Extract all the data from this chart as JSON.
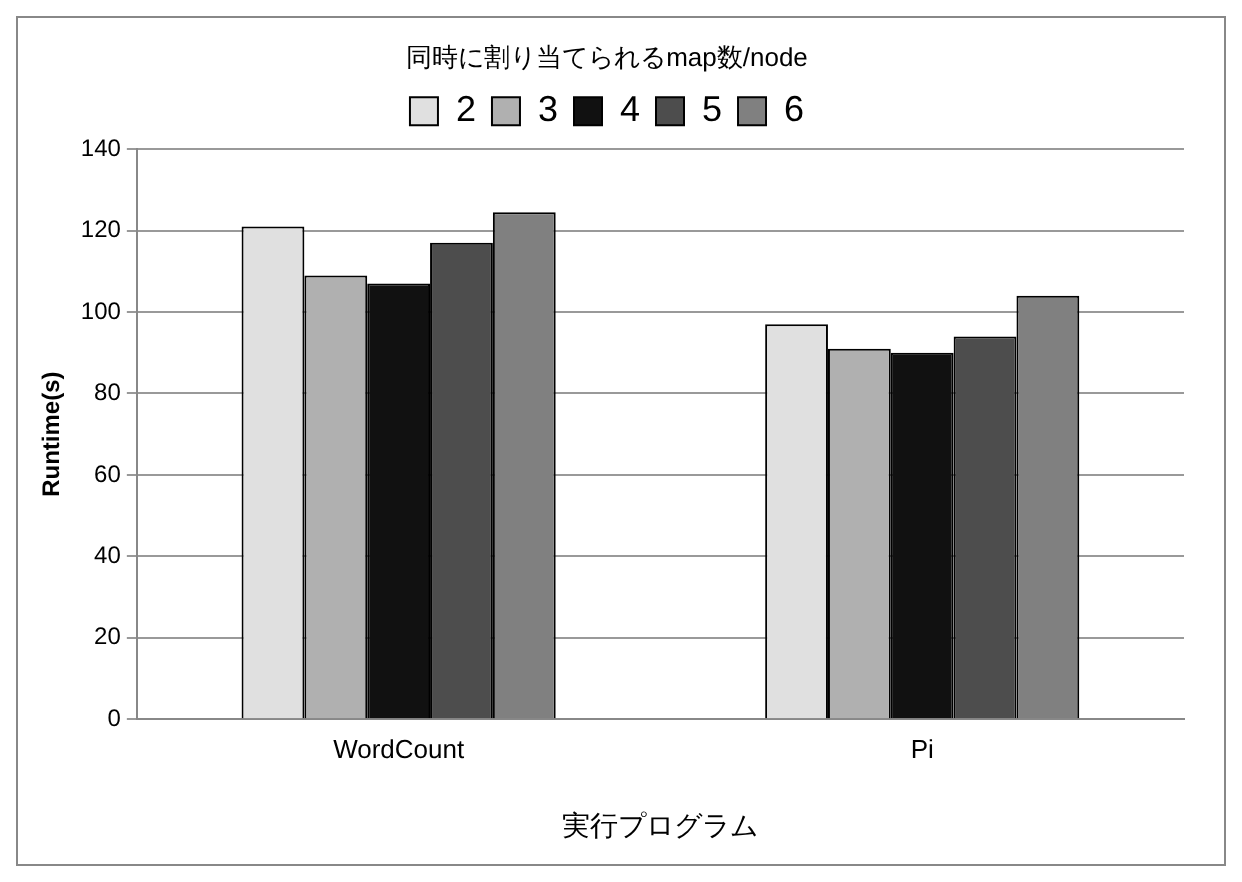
{
  "chart_data": {
    "type": "bar",
    "legend_title": "同時に割り当てられるmap数/node",
    "xlabel": "実行プログラム",
    "ylabel": "Runtime(s)",
    "categories": [
      "WordCount",
      "Pi"
    ],
    "series": [
      {
        "name": "2",
        "color": "#e0e0e0",
        "values": [
          121,
          97
        ]
      },
      {
        "name": "3",
        "color": "#b0b0b0",
        "values": [
          109,
          91
        ]
      },
      {
        "name": "4",
        "color": "#111111",
        "values": [
          107,
          90
        ]
      },
      {
        "name": "5",
        "color": "#4d4d4d",
        "values": [
          117,
          94
        ]
      },
      {
        "name": "6",
        "color": "#808080",
        "values": [
          124.5,
          104
        ]
      }
    ],
    "ylim": [
      0,
      140
    ],
    "yticks": [
      0,
      20,
      40,
      60,
      80,
      100,
      120,
      140
    ],
    "grid": "y",
    "legend": "top"
  }
}
